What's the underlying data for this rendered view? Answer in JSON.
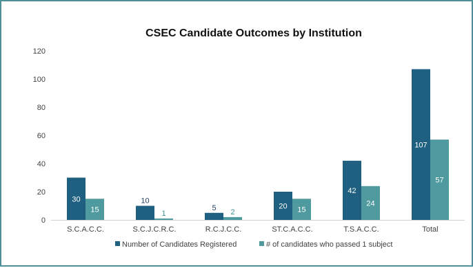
{
  "chart_data": {
    "type": "bar",
    "title": "CSEC Candidate Outcomes by Institution",
    "categories": [
      "S.C.A.C.C.",
      "S.C.J.C.R.C.",
      "R.C.J.C.C.",
      "ST.C.A.C.C.",
      "T.S.A.C.C.",
      "Total"
    ],
    "series": [
      {
        "name": "Number of Candidates Registered",
        "values": [
          30,
          10,
          5,
          20,
          42,
          107
        ],
        "color": "#1f5f7f"
      },
      {
        "name": "# of candidates who passed 1 subject",
        "values": [
          15,
          1,
          2,
          15,
          24,
          57
        ],
        "color": "#4f9a9e"
      }
    ],
    "ylim": [
      0,
      120
    ],
    "yticks": [
      0,
      20,
      40,
      60,
      80,
      100,
      120
    ],
    "grid": false,
    "legend_position": "bottom"
  }
}
